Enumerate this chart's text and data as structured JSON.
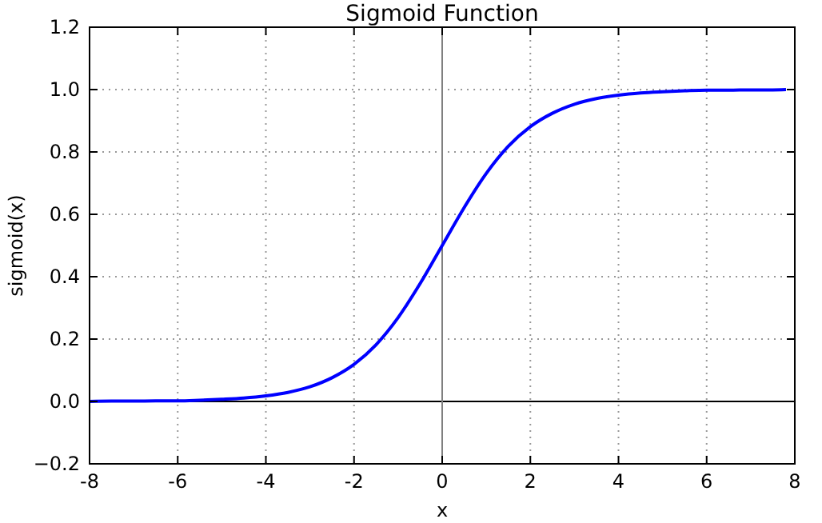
{
  "chart_data": {
    "type": "line",
    "title": "Sigmoid Function",
    "xlabel": "x",
    "ylabel": "sigmoid(x)",
    "x": [
      -8,
      -7.5,
      -7,
      -6.5,
      -6,
      -5.5,
      -5,
      -4.5,
      -4,
      -3.5,
      -3,
      -2.5,
      -2,
      -1.5,
      -1,
      -0.5,
      0,
      0.5,
      1,
      1.5,
      2,
      2.5,
      3,
      3.5,
      4,
      4.5,
      5,
      5.5,
      6,
      6.5,
      7,
      7.5,
      7.8
    ],
    "series": [
      {
        "color": "#0000ff",
        "values": [
          0.0,
          0.001,
          0.001,
          0.002,
          0.002,
          0.004,
          0.007,
          0.011,
          0.018,
          0.029,
          0.047,
          0.076,
          0.119,
          0.182,
          0.269,
          0.378,
          0.5,
          0.622,
          0.731,
          0.818,
          0.881,
          0.924,
          0.953,
          0.971,
          0.982,
          0.989,
          0.993,
          0.996,
          0.998,
          0.998,
          0.999,
          0.999,
          1.0
        ]
      }
    ],
    "xlim": [
      -8,
      8
    ],
    "xticks": [
      -8,
      -6,
      -4,
      -2,
      0,
      2,
      4,
      6,
      8
    ],
    "ylim": [
      -0.2,
      1.2
    ],
    "yticks": [
      {
        "value": -0.2,
        "label": "−0.2"
      },
      {
        "value": 0,
        "label": "0.0"
      },
      {
        "value": 0.2,
        "label": "0.2"
      },
      {
        "value": 0.4,
        "label": "0.4"
      },
      {
        "value": 0.6,
        "label": "0.6"
      },
      {
        "value": 0.8,
        "label": "0.8"
      },
      {
        "value": 1,
        "label": "1.0"
      },
      {
        "value": 1.2,
        "label": "1.2"
      }
    ],
    "ref_lines": [
      {
        "axis": "y",
        "value": 0,
        "color": "#000000"
      },
      {
        "axis": "x",
        "value": 0,
        "color": "#808080"
      }
    ],
    "grid": true,
    "marker": "none",
    "line_style": "solid"
  }
}
